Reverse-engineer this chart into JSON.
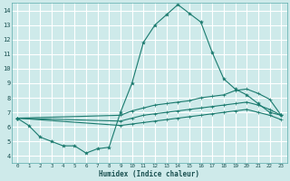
{
  "background_color": "#ceeaea",
  "grid_color": "#ffffff",
  "line_color": "#1a7a6e",
  "xlabel": "Humidex (Indice chaleur)",
  "xlim": [
    -0.5,
    23.5
  ],
  "ylim": [
    3.5,
    14.5
  ],
  "yticks": [
    4,
    5,
    6,
    7,
    8,
    9,
    10,
    11,
    12,
    13,
    14
  ],
  "xticks": [
    0,
    1,
    2,
    3,
    4,
    5,
    6,
    7,
    8,
    9,
    10,
    11,
    12,
    13,
    14,
    15,
    16,
    17,
    18,
    19,
    20,
    21,
    22,
    23
  ],
  "curve1_x": [
    0,
    1,
    2,
    3,
    4,
    5,
    6,
    7,
    8,
    9,
    10,
    11,
    12,
    13,
    14,
    15,
    16,
    17,
    18,
    19,
    20,
    21,
    22,
    23
  ],
  "curve1_y": [
    6.6,
    6.1,
    5.3,
    5.0,
    4.7,
    4.7,
    4.2,
    4.5,
    4.6,
    7.0,
    9.0,
    11.8,
    13.0,
    13.7,
    14.4,
    13.8,
    13.2,
    11.1,
    9.3,
    8.6,
    8.2,
    7.6,
    7.0,
    6.8
  ],
  "curve2_x": [
    0,
    9,
    10,
    11,
    12,
    13,
    14,
    15,
    16,
    17,
    18,
    19,
    20,
    21,
    22,
    23
  ],
  "curve2_y": [
    6.6,
    6.8,
    7.1,
    7.3,
    7.5,
    7.6,
    7.7,
    7.8,
    8.0,
    8.1,
    8.2,
    8.5,
    8.6,
    8.3,
    7.9,
    6.8
  ],
  "curve3_x": [
    0,
    9,
    10,
    11,
    12,
    13,
    14,
    15,
    16,
    17,
    18,
    19,
    20,
    21,
    22,
    23
  ],
  "curve3_y": [
    6.6,
    6.4,
    6.6,
    6.8,
    6.9,
    7.0,
    7.1,
    7.2,
    7.3,
    7.4,
    7.5,
    7.6,
    7.7,
    7.5,
    7.2,
    6.8
  ],
  "curve4_x": [
    0,
    9,
    10,
    11,
    12,
    13,
    14,
    15,
    16,
    17,
    18,
    19,
    20,
    21,
    22,
    23
  ],
  "curve4_y": [
    6.6,
    6.1,
    6.2,
    6.3,
    6.4,
    6.5,
    6.6,
    6.7,
    6.8,
    6.9,
    7.0,
    7.1,
    7.2,
    7.0,
    6.8,
    6.5
  ]
}
